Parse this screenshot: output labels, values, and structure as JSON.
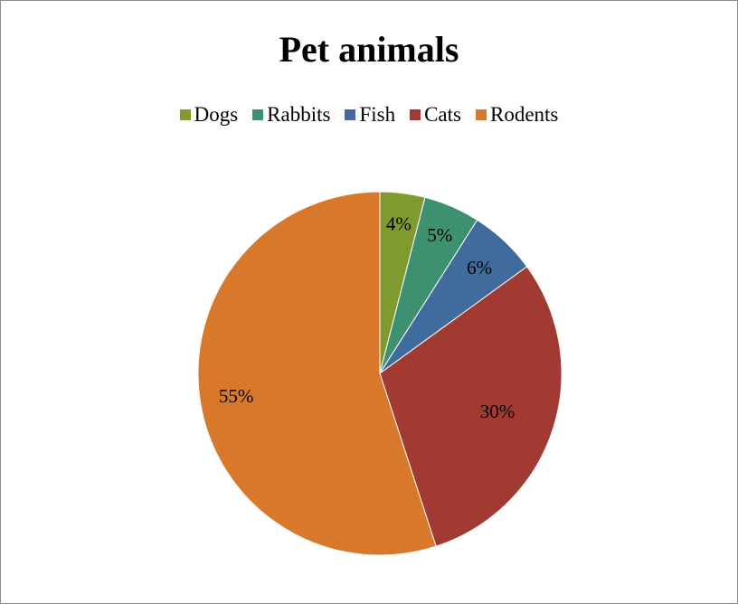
{
  "chart_data": {
    "type": "pie",
    "title": "Pet animals",
    "legend_position": "top",
    "categories": [
      "Dogs",
      "Rabbits",
      "Fish",
      "Cats",
      "Rodents"
    ],
    "values": [
      4,
      5,
      6,
      30,
      55
    ],
    "data_labels": [
      "4%",
      "5%",
      "6%",
      "30%",
      "55%"
    ],
    "colors": [
      "#7f9a2e",
      "#3d9170",
      "#3f6c9c",
      "#a03a33",
      "#d8782a"
    ]
  }
}
